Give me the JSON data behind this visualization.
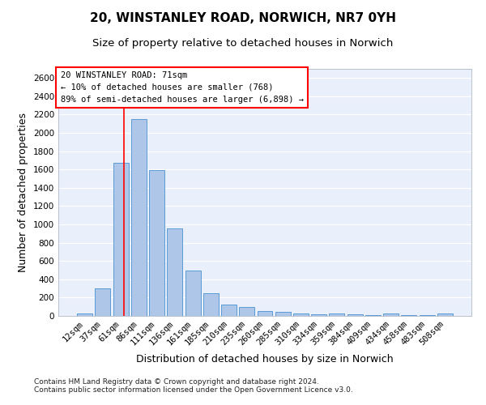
{
  "title1": "20, WINSTANLEY ROAD, NORWICH, NR7 0YH",
  "title2": "Size of property relative to detached houses in Norwich",
  "xlabel": "Distribution of detached houses by size in Norwich",
  "ylabel": "Number of detached properties",
  "categories": [
    "12sqm",
    "37sqm",
    "61sqm",
    "86sqm",
    "111sqm",
    "136sqm",
    "161sqm",
    "185sqm",
    "210sqm",
    "235sqm",
    "260sqm",
    "285sqm",
    "310sqm",
    "334sqm",
    "359sqm",
    "384sqm",
    "409sqm",
    "434sqm",
    "458sqm",
    "483sqm",
    "508sqm"
  ],
  "values": [
    25,
    300,
    1675,
    2150,
    1590,
    960,
    500,
    250,
    120,
    100,
    50,
    40,
    25,
    20,
    25,
    20,
    10,
    25,
    10,
    5,
    25
  ],
  "bar_color": "#aec6e8",
  "bar_edge_color": "#5b9bd5",
  "ylim": [
    0,
    2700
  ],
  "yticks": [
    0,
    200,
    400,
    600,
    800,
    1000,
    1200,
    1400,
    1600,
    1800,
    2000,
    2200,
    2400,
    2600
  ],
  "red_line_x": 2.18,
  "annotation_text": "20 WINSTANLEY ROAD: 71sqm\n← 10% of detached houses are smaller (768)\n89% of semi-detached houses are larger (6,898) →",
  "annotation_box_color": "white",
  "annotation_box_edge_color": "red",
  "footnote1": "Contains HM Land Registry data © Crown copyright and database right 2024.",
  "footnote2": "Contains public sector information licensed under the Open Government Licence v3.0.",
  "background_color": "#eaf0fb",
  "grid_color": "white",
  "title1_fontsize": 11,
  "title2_fontsize": 9.5,
  "axis_label_fontsize": 9,
  "tick_fontsize": 7.5,
  "annotation_fontsize": 7.5,
  "footnote_fontsize": 6.5
}
